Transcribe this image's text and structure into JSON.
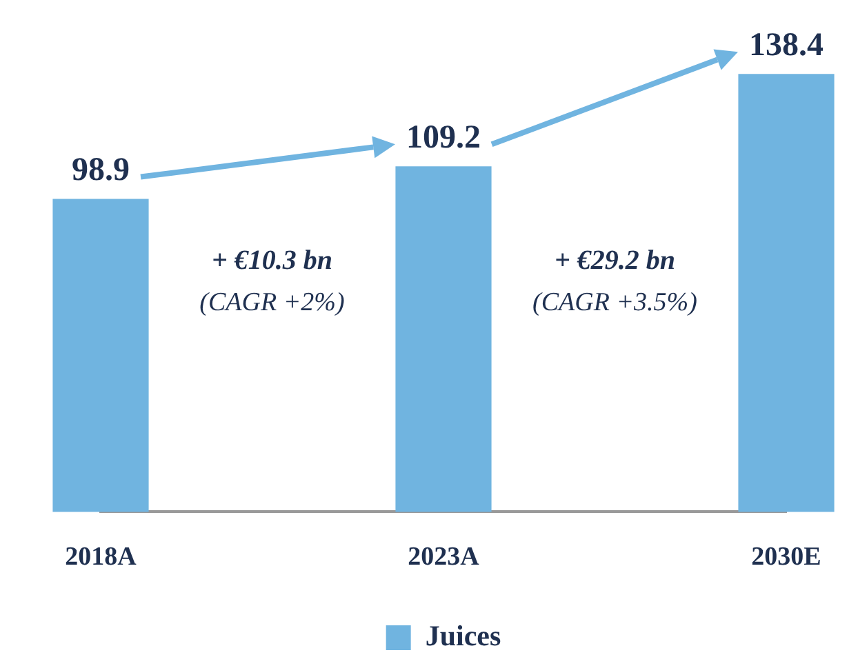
{
  "chart_data": {
    "type": "bar",
    "categories": [
      "2018A",
      "2023A",
      "2030E"
    ],
    "series": [
      {
        "name": "Juices",
        "color": "#70b4e0",
        "values": [
          98.9,
          109.2,
          138.4
        ]
      }
    ],
    "data_labels": true,
    "legend": "bottom",
    "grid": false,
    "annotations": [
      "+ €10.3 bn",
      "(CAGR +2%)",
      "+ €29.2 bn",
      "(CAGR +3.5%)"
    ]
  }
}
